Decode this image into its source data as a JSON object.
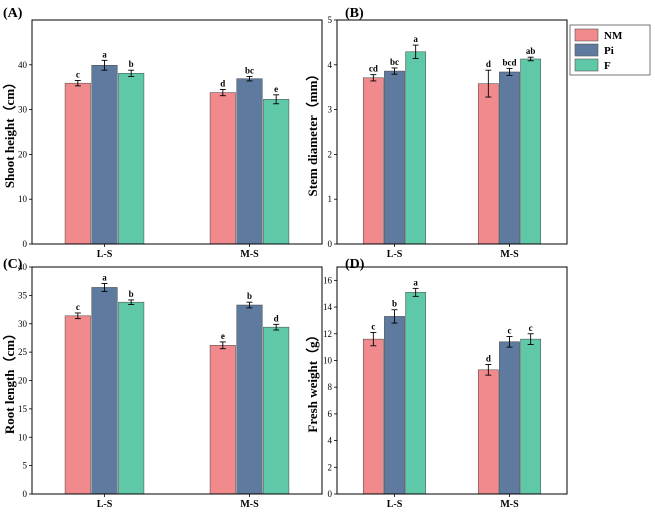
{
  "legend": [
    {
      "name": "NM",
      "color": "#F08A8C"
    },
    {
      "name": "Pi",
      "color": "#5E7A9E"
    },
    {
      "name": "F",
      "color": "#5FC8A8"
    }
  ],
  "chart_data": [
    {
      "type": "bar",
      "panel_label": "(A)",
      "ylabel": "Shoot height（cm）",
      "ylim": [
        0,
        50
      ],
      "yticks": [
        0,
        10,
        20,
        30,
        40
      ],
      "categories": [
        "L-S",
        "M-S"
      ],
      "series": [
        {
          "name": "NM",
          "values": [
            35.9,
            33.8
          ],
          "errors": [
            0.6,
            0.7
          ],
          "letters": [
            "c",
            "d"
          ]
        },
        {
          "name": "Pi",
          "values": [
            39.9,
            36.9
          ],
          "errors": [
            1.1,
            0.5
          ],
          "letters": [
            "a",
            "bc"
          ]
        },
        {
          "name": "F",
          "values": [
            38.1,
            32.3
          ],
          "errors": [
            0.7,
            1.0
          ],
          "letters": [
            "b",
            "e"
          ]
        }
      ]
    },
    {
      "type": "bar",
      "panel_label": "(B)",
      "ylabel": "Stem diameter（mm）",
      "ylim": [
        0,
        5
      ],
      "yticks": [
        0,
        1,
        2,
        3,
        4,
        5
      ],
      "categories": [
        "L-S",
        "M-S"
      ],
      "series": [
        {
          "name": "NM",
          "values": [
            3.71,
            3.58
          ],
          "errors": [
            0.07,
            0.3
          ],
          "letters": [
            "cd",
            "d"
          ]
        },
        {
          "name": "Pi",
          "values": [
            3.86,
            3.84
          ],
          "errors": [
            0.07,
            0.08
          ],
          "letters": [
            "bc",
            "bcd"
          ]
        },
        {
          "name": "F",
          "values": [
            4.29,
            4.13
          ],
          "errors": [
            0.15,
            0.04
          ],
          "letters": [
            "a",
            "ab"
          ]
        }
      ]
    },
    {
      "type": "bar",
      "panel_label": "(C)",
      "ylabel": "Root length（cm）",
      "ylim": [
        0,
        40
      ],
      "yticks": [
        0,
        5,
        10,
        15,
        20,
        25,
        30,
        35,
        40
      ],
      "categories": [
        "L-S",
        "M-S"
      ],
      "series": [
        {
          "name": "NM",
          "values": [
            31.4,
            26.2
          ],
          "errors": [
            0.5,
            0.6
          ],
          "letters": [
            "c",
            "e"
          ]
        },
        {
          "name": "Pi",
          "values": [
            36.4,
            33.3
          ],
          "errors": [
            0.7,
            0.5
          ],
          "letters": [
            "a",
            "b"
          ]
        },
        {
          "name": "F",
          "values": [
            33.8,
            29.4
          ],
          "errors": [
            0.4,
            0.5
          ],
          "letters": [
            "b",
            "d"
          ]
        }
      ]
    },
    {
      "type": "bar",
      "panel_label": "(D)",
      "ylabel": "Fresh weight（g）",
      "ylim": [
        0,
        17
      ],
      "yticks": [
        0,
        2,
        4,
        6,
        8,
        10,
        12,
        14,
        16
      ],
      "categories": [
        "L-S",
        "M-S"
      ],
      "series": [
        {
          "name": "NM",
          "values": [
            11.6,
            9.3
          ],
          "errors": [
            0.5,
            0.4
          ],
          "letters": [
            "c",
            "d"
          ]
        },
        {
          "name": "Pi",
          "values": [
            13.3,
            11.4
          ],
          "errors": [
            0.5,
            0.4
          ],
          "letters": [
            "b",
            "c"
          ]
        },
        {
          "name": "F",
          "values": [
            15.1,
            11.6
          ],
          "errors": [
            0.3,
            0.4
          ],
          "letters": [
            "a",
            "c"
          ]
        }
      ]
    }
  ]
}
